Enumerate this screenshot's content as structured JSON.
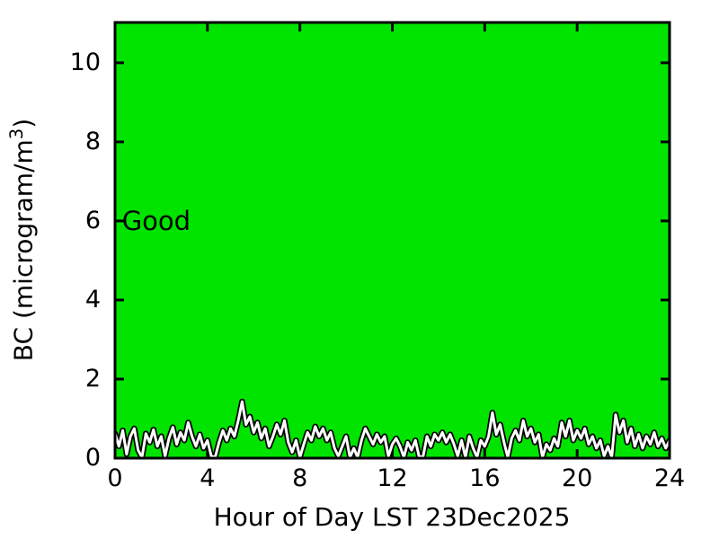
{
  "figure": {
    "background": "#ffffff",
    "plot_background": "#00e400",
    "axis_color": "#000000",
    "text_color": "#000000"
  },
  "chart_data": {
    "type": "line",
    "title": "",
    "xlabel": "Hour of Day LST 23Dec2025",
    "ylabel": "BC (microgram/m³)",
    "ylabel_parts": {
      "pre": "BC (microgram/m",
      "sup": "3",
      "post": ")"
    },
    "xlim": [
      0,
      24
    ],
    "ylim": [
      0,
      11.02
    ],
    "x_ticks": [
      0,
      4,
      8,
      12,
      16,
      20,
      24
    ],
    "y_ticks": [
      0,
      2,
      4,
      6,
      8,
      10
    ],
    "grid": false,
    "legend": "none",
    "annotations": [
      {
        "text": "Good",
        "x": 0.3,
        "y": 6,
        "color": "#000000"
      }
    ],
    "series": [
      {
        "name": "BC",
        "units": "microgram/m3",
        "line_color": "#ffffff",
        "line_outline_color": "#000000",
        "x_start_hour": 0,
        "x_step_hours": 0.166667,
        "values": [
          0.62,
          0.3,
          0.7,
          0.1,
          0.55,
          0.75,
          0.2,
          0.02,
          0.62,
          0.4,
          0.72,
          0.3,
          0.55,
          0.05,
          0.5,
          0.78,
          0.35,
          0.65,
          0.45,
          0.9,
          0.55,
          0.3,
          0.6,
          0.25,
          0.45,
          0.05,
          0.02,
          0.4,
          0.7,
          0.45,
          0.75,
          0.55,
          0.95,
          1.43,
          0.85,
          1.05,
          0.65,
          0.9,
          0.5,
          0.75,
          0.3,
          0.55,
          0.85,
          0.6,
          0.95,
          0.4,
          0.15,
          0.45,
          0.02,
          0.35,
          0.65,
          0.45,
          0.8,
          0.55,
          0.75,
          0.45,
          0.65,
          0.25,
          0.05,
          0.3,
          0.55,
          0.02,
          0.25,
          0.02,
          0.45,
          0.75,
          0.55,
          0.35,
          0.6,
          0.4,
          0.55,
          0.05,
          0.35,
          0.5,
          0.3,
          0.02,
          0.4,
          0.2,
          0.45,
          0.02,
          0.05,
          0.55,
          0.3,
          0.6,
          0.45,
          0.65,
          0.4,
          0.6,
          0.35,
          0.05,
          0.45,
          0.02,
          0.55,
          0.25,
          0.02,
          0.45,
          0.3,
          0.55,
          1.15,
          0.6,
          0.85,
          0.4,
          0.02,
          0.5,
          0.7,
          0.45,
          0.95,
          0.55,
          0.75,
          0.4,
          0.6,
          0.02,
          0.35,
          0.2,
          0.5,
          0.3,
          0.9,
          0.55,
          0.95,
          0.45,
          0.7,
          0.5,
          0.75,
          0.35,
          0.55,
          0.25,
          0.45,
          0.05,
          0.3,
          0.02,
          1.1,
          0.65,
          0.95,
          0.4,
          0.75,
          0.3,
          0.6,
          0.25,
          0.55,
          0.35,
          0.65,
          0.3,
          0.5,
          0.25,
          0.45
        ]
      }
    ]
  }
}
